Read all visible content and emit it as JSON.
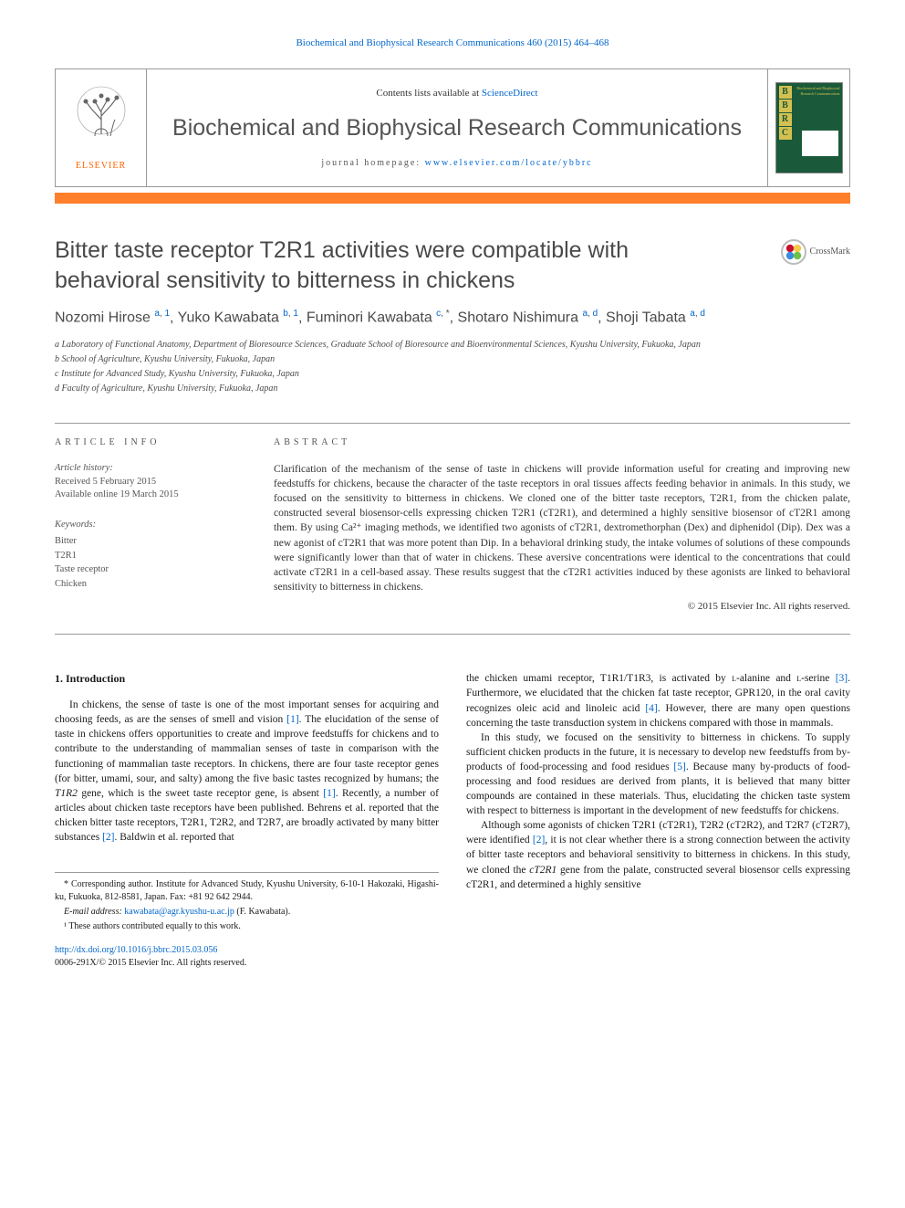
{
  "top_citation": "Biochemical and Biophysical Research Communications 460 (2015) 464–468",
  "header": {
    "contents_prefix": "Contents lists available at ",
    "contents_link": "ScienceDirect",
    "journal_name": "Biochemical and Biophysical Research Communications",
    "homepage_prefix": "journal homepage: ",
    "homepage_link": "www.elsevier.com/locate/ybbrc",
    "elsevier": "ELSEVIER",
    "cover_letters": [
      "B",
      "B",
      "R",
      "C"
    ],
    "cover_title": "Biochemical and Biophysical Research Communications"
  },
  "crossmark": "CrossMark",
  "title": "Bitter taste receptor T2R1 activities were compatible with behavioral sensitivity to bitterness in chickens",
  "authors_html": "Nozomi Hirose <sup><a>a</a>, <a>1</a></sup>, Yuko Kawabata <sup><a>b</a>, <a>1</a></sup>, Fuminori Kawabata <sup><a>c</a>, *</sup>, Shotaro Nishimura <sup><a>a</a>, <a>d</a></sup>, Shoji Tabata <sup><a>a</a>, <a>d</a></sup>",
  "affiliations": [
    "a Laboratory of Functional Anatomy, Department of Bioresource Sciences, Graduate School of Bioresource and Bioenvironmental Sciences, Kyushu University, Fukuoka, Japan",
    "b School of Agriculture, Kyushu University, Fukuoka, Japan",
    "c Institute for Advanced Study, Kyushu University, Fukuoka, Japan",
    "d Faculty of Agriculture, Kyushu University, Fukuoka, Japan"
  ],
  "article_info": {
    "header": "ARTICLE INFO",
    "history_label": "Article history:",
    "received": "Received 5 February 2015",
    "online": "Available online 19 March 2015",
    "keywords_label": "Keywords:",
    "keywords": [
      "Bitter",
      "T2R1",
      "Taste receptor",
      "Chicken"
    ]
  },
  "abstract": {
    "header": "ABSTRACT",
    "text": "Clarification of the mechanism of the sense of taste in chickens will provide information useful for creating and improving new feedstuffs for chickens, because the character of the taste receptors in oral tissues affects feeding behavior in animals. In this study, we focused on the sensitivity to bitterness in chickens. We cloned one of the bitter taste receptors, T2R1, from the chicken palate, constructed several biosensor-cells expressing chicken T2R1 (cT2R1), and determined a highly sensitive biosensor of cT2R1 among them. By using Ca²⁺ imaging methods, we identified two agonists of cT2R1, dextromethorphan (Dex) and diphenidol (Dip). Dex was a new agonist of cT2R1 that was more potent than Dip. In a behavioral drinking study, the intake volumes of solutions of these compounds were significantly lower than that of water in chickens. These aversive concentrations were identical to the concentrations that could activate cT2R1 in a cell-based assay. These results suggest that the cT2R1 activities induced by these agonists are linked to behavioral sensitivity to bitterness in chickens.",
    "copyright": "© 2015 Elsevier Inc. All rights reserved."
  },
  "body": {
    "intro_heading": "1. Introduction",
    "left_paragraphs": [
      "In chickens, the sense of taste is one of the most important senses for acquiring and choosing feeds, as are the senses of smell and vision <a class=\"ref-link\">[1]</a>. The elucidation of the sense of taste in chickens offers opportunities to create and improve feedstuffs for chickens and to contribute to the understanding of mammalian senses of taste in comparison with the functioning of mammalian taste receptors. In chickens, there are four taste receptor genes (for bitter, umami, sour, and salty) among the five basic tastes recognized by humans; the <i>T1R2</i> gene, which is the sweet taste receptor gene, is absent <a class=\"ref-link\">[1]</a>. Recently, a number of articles about chicken taste receptors have been published. Behrens et al. reported that the chicken bitter taste receptors, T2R1, T2R2, and T2R7, are broadly activated by many bitter substances <a class=\"ref-link\">[2]</a>. Baldwin et al. reported that"
    ],
    "right_paragraphs": [
      "the chicken umami receptor, T1R1/T1R3, is activated by <span class=\"sc\">l</span>-alanine and <span class=\"sc\">l</span>-serine <a class=\"ref-link\">[3]</a>. Furthermore, we elucidated that the chicken fat taste receptor, GPR120, in the oral cavity recognizes oleic acid and linoleic acid <a class=\"ref-link\">[4]</a>. However, there are many open questions concerning the taste transduction system in chickens compared with those in mammals.",
      "In this study, we focused on the sensitivity to bitterness in chickens. To supply sufficient chicken products in the future, it is necessary to develop new feedstuffs from by-products of food-processing and food residues <a class=\"ref-link\">[5]</a>. Because many by-products of food-processing and food residues are derived from plants, it is believed that many bitter compounds are contained in these materials. Thus, elucidating the chicken taste system with respect to bitterness is important in the development of new feedstuffs for chickens.",
      "Although some agonists of chicken T2R1 (cT2R1), T2R2 (cT2R2), and T2R7 (cT2R7), were identified <a class=\"ref-link\">[2]</a>, it is not clear whether there is a strong connection between the activity of bitter taste receptors and behavioral sensitivity to bitterness in chickens. In this study, we cloned the <i>cT2R1</i> gene from the palate, constructed several biosensor cells expressing cT2R1, and determined a highly sensitive"
    ]
  },
  "footnotes": {
    "corr": "* Corresponding author. Institute for Advanced Study, Kyushu University, 6-10-1 Hakozaki, Higashi-ku, Fukuoka, 812-8581, Japan. Fax: +81 92 642 2944.",
    "email_label": "E-mail address: ",
    "email": "kawabata@agr.kyushu-u.ac.jp",
    "email_suffix": " (F. Kawabata).",
    "equal": "¹ These authors contributed equally to this work."
  },
  "doi": {
    "link": "http://dx.doi.org/10.1016/j.bbrc.2015.03.056",
    "issn": "0006-291X/© 2015 Elsevier Inc. All rights reserved."
  },
  "colors": {
    "orange": "#ff7f2a",
    "link": "#0066cc",
    "green": "#1a5a3a",
    "gold": "#d4c050",
    "gray_text": "#4a4a4a"
  }
}
